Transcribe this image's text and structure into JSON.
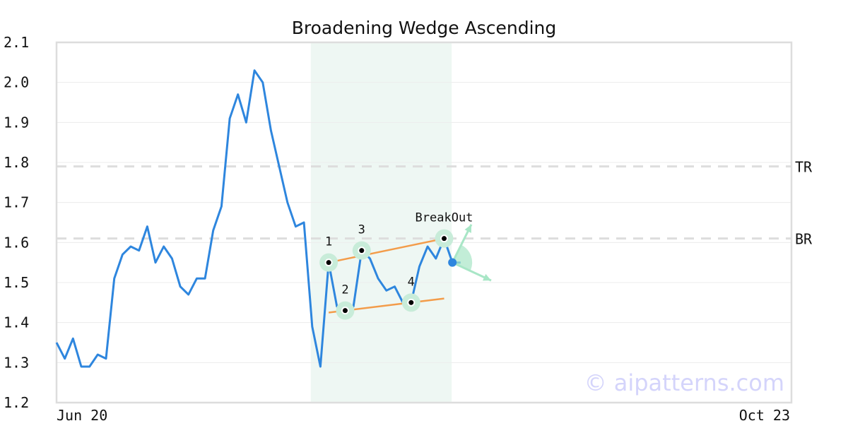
{
  "chart_data": {
    "type": "line",
    "title": "Broadening Wedge Ascending",
    "ylim": [
      1.2,
      2.1
    ],
    "yticks": [
      "1.2",
      "1.3",
      "1.4",
      "1.5",
      "1.6",
      "1.7",
      "1.8",
      "1.9",
      "2.0",
      "2.1"
    ],
    "xlabels": [
      "Jun 20",
      "Oct 23"
    ],
    "grid": true,
    "series": [
      {
        "color": "#2e86de",
        "values": [
          1.35,
          1.31,
          1.36,
          1.29,
          1.29,
          1.32,
          1.31,
          1.51,
          1.57,
          1.59,
          1.58,
          1.64,
          1.55,
          1.59,
          1.56,
          1.49,
          1.47,
          1.51,
          1.51,
          1.63,
          1.69,
          1.91,
          1.97,
          1.9,
          2.03,
          2.0,
          1.88,
          1.79,
          1.7,
          1.64,
          1.65,
          1.39,
          1.29,
          1.55,
          1.44,
          1.43,
          1.44,
          1.58,
          1.56,
          1.51,
          1.48,
          1.49,
          1.45,
          1.45,
          1.54,
          1.59,
          1.56,
          1.61,
          1.55,
          1.55
        ]
      }
    ],
    "highlight_range": [
      31,
      48
    ],
    "reference_lines": [
      {
        "label": "TR",
        "value": 1.79
      },
      {
        "label": "BR",
        "value": 1.61
      }
    ],
    "pattern_points": [
      {
        "label": "1",
        "index": 33,
        "value": 1.55
      },
      {
        "label": "2",
        "index": 35,
        "value": 1.43
      },
      {
        "label": "3",
        "index": 37,
        "value": 1.58
      },
      {
        "label": "4",
        "index": 43,
        "value": 1.45
      },
      {
        "label": "BreakOut",
        "index": 47,
        "value": 1.61
      }
    ],
    "trendlines": [
      {
        "from": [
          33,
          1.55
        ],
        "to": [
          47,
          1.61
        ]
      },
      {
        "from": [
          33,
          1.425
        ],
        "to": [
          47,
          1.46
        ]
      }
    ],
    "current_point": {
      "index": 48,
      "value": 1.55
    },
    "colors": {
      "line": "#2e86de",
      "trendline": "#f39c4a",
      "highlight": "#eef7f3",
      "marker_halo": "#c8ecd9",
      "arrow": "#a8e6c6",
      "reference": "#dddddd",
      "current": "#2e86de"
    },
    "watermark": "© aipatterns.com"
  }
}
